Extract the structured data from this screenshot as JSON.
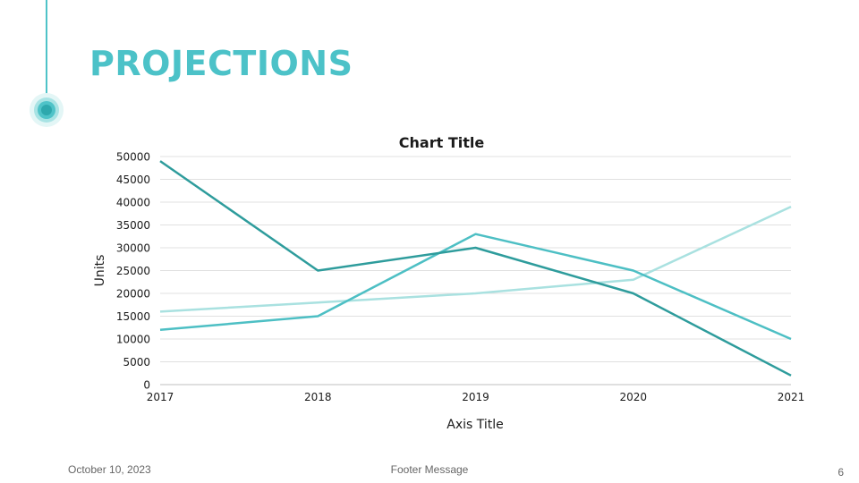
{
  "slide": {
    "title": "PROJECTIONS",
    "footer_date": "October 10, 2023",
    "footer_message": "Footer Message",
    "page_number": "6",
    "accent_color": "#4cc2c8"
  },
  "chart_data": {
    "type": "line",
    "title": "Chart Title",
    "xlabel": "Axis Title",
    "ylabel": "Units",
    "categories": [
      "2017",
      "2018",
      "2019",
      "2020",
      "2021"
    ],
    "ylim": [
      0,
      50000
    ],
    "yticks": [
      0,
      5000,
      10000,
      15000,
      20000,
      25000,
      30000,
      35000,
      40000,
      45000,
      50000
    ],
    "grid": true,
    "series": [
      {
        "values": [
          49000,
          25000,
          30000,
          20000,
          2000
        ],
        "color": "#2e9c9c"
      },
      {
        "values": [
          12000,
          15000,
          33000,
          25000,
          10000
        ],
        "color": "#4dbfc4"
      },
      {
        "values": [
          16000,
          18000,
          20000,
          23000,
          39000
        ],
        "color": "#a9e1e0"
      }
    ]
  }
}
